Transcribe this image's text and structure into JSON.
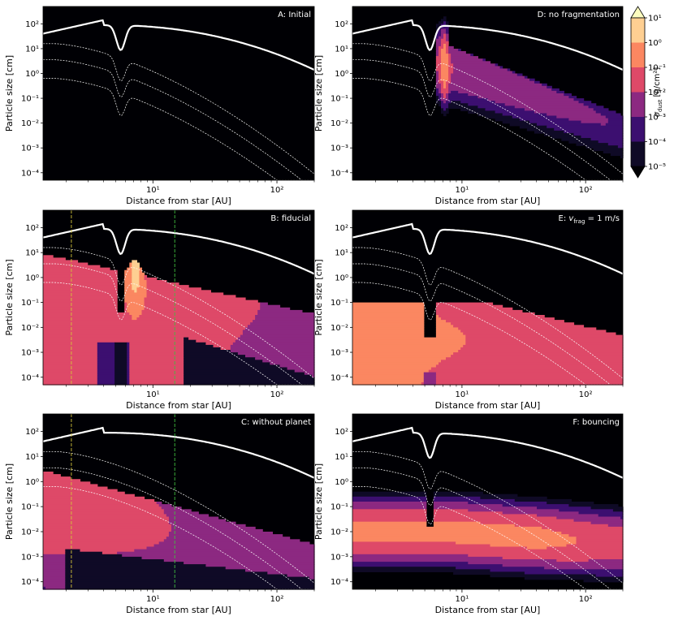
{
  "figure": {
    "colorbar": {
      "label_main": "σ",
      "label_sub": "dust",
      "label_unit": " [g/cm²]",
      "ticks": [
        "10¹",
        "10⁰",
        "10⁻¹",
        "10⁻²",
        "10⁻³",
        "10⁻⁴",
        "10⁻⁵"
      ],
      "levels": [
        {
          "from": -5,
          "to": -4,
          "color": "#0f0a26"
        },
        {
          "from": -4,
          "to": -3,
          "color": "#3c0f70"
        },
        {
          "from": -3,
          "to": -2,
          "color": "#8c2981"
        },
        {
          "from": -2,
          "to": -1,
          "color": "#de4968"
        },
        {
          "from": -1,
          "to": 0,
          "color": "#fb8761"
        },
        {
          "from": 0,
          "to": 1,
          "color": "#fecf92"
        }
      ],
      "under_color": "#000004",
      "over_color": "#fcfdbf"
    },
    "xlabel": "Distance from star [AU]",
    "ylabel": "Particle size [cm]",
    "xticks": [
      "10¹",
      "10²"
    ],
    "yticks": [
      "10²",
      "10¹",
      "10⁰",
      "10⁻¹",
      "10⁻²",
      "10⁻³",
      "10⁻⁴"
    ]
  },
  "chart_data": [
    {
      "id": "A",
      "type": "heatmap",
      "title": "A: Initial",
      "xlabel": "Distance from star [AU]",
      "ylabel": "Particle size [cm]",
      "x_scale": "log",
      "y_scale": "log",
      "xlim": [
        1.3,
        200
      ],
      "ylim": [
        5e-05,
        500
      ],
      "gap_au": 5.5,
      "planet_gap": true,
      "fragmentation_limit": true,
      "drift_limit": true,
      "guide_lines": []
    },
    {
      "id": "D",
      "type": "heatmap",
      "title": "D: no fragmentation",
      "xlabel": "Distance from star [AU]",
      "ylabel": "Particle size [cm]",
      "x_scale": "log",
      "y_scale": "log",
      "xlim": [
        1.3,
        200
      ],
      "ylim": [
        5e-05,
        500
      ],
      "gap_au": 5.5,
      "planet_gap": true,
      "guide_lines": []
    },
    {
      "id": "B",
      "type": "heatmap",
      "title": "B: fiducial",
      "xlabel": "Distance from star [AU]",
      "ylabel": "Particle size [cm]",
      "x_scale": "log",
      "y_scale": "log",
      "xlim": [
        1.3,
        200
      ],
      "ylim": [
        5e-05,
        500
      ],
      "gap_au": 5.5,
      "planet_gap": true,
      "guide_lines": [
        {
          "x": 2.2,
          "color": "#d4c33a"
        },
        {
          "x": 15,
          "color": "#3fbf3f"
        }
      ]
    },
    {
      "id": "E",
      "type": "heatmap",
      "title_main": "E: ",
      "title_var": "v",
      "title_sub": "frag",
      "title_rest": " = 1 m/s",
      "xlabel": "Distance from star [AU]",
      "ylabel": "Particle size [cm]",
      "x_scale": "log",
      "y_scale": "log",
      "xlim": [
        1.3,
        200
      ],
      "ylim": [
        5e-05,
        500
      ],
      "gap_au": 5.5,
      "planet_gap": true,
      "guide_lines": []
    },
    {
      "id": "C",
      "type": "heatmap",
      "title": "C: without planet",
      "xlabel": "Distance from star [AU]",
      "ylabel": "Particle size [cm]",
      "x_scale": "log",
      "y_scale": "log",
      "xlim": [
        1.3,
        200
      ],
      "ylim": [
        5e-05,
        500
      ],
      "planet_gap": false,
      "guide_lines": [
        {
          "x": 2.2,
          "color": "#d4c33a"
        },
        {
          "x": 15,
          "color": "#3fbf3f"
        }
      ]
    },
    {
      "id": "F",
      "type": "heatmap",
      "title": "F: bouncing",
      "xlabel": "Distance from star [AU]",
      "ylabel": "Particle size [cm]",
      "x_scale": "log",
      "y_scale": "log",
      "xlim": [
        1.3,
        200
      ],
      "ylim": [
        5e-05,
        500
      ],
      "gap_au": 5.5,
      "planet_gap": true,
      "guide_lines": []
    }
  ]
}
